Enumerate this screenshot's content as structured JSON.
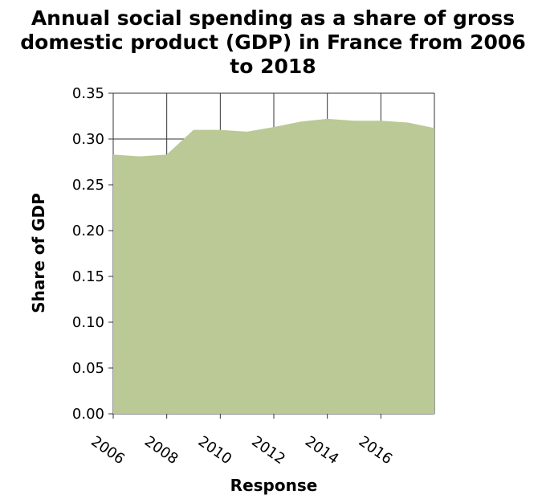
{
  "chart_data": {
    "type": "area",
    "title_lines": [
      "Annual social spending as a share of gross",
      "domestic product (GDP) in France from 2006",
      "to 2018"
    ],
    "xlabel": "Response",
    "ylabel": "Share of GDP",
    "x": [
      2006,
      2007,
      2008,
      2009,
      2010,
      2011,
      2012,
      2013,
      2014,
      2015,
      2016,
      2017,
      2018
    ],
    "values": [
      0.283,
      0.281,
      0.283,
      0.31,
      0.31,
      0.308,
      0.313,
      0.319,
      0.322,
      0.32,
      0.32,
      0.318,
      0.312
    ],
    "xlim": [
      2006,
      2018
    ],
    "ylim": [
      0,
      0.35
    ],
    "x_ticks": [
      "2006",
      "2008",
      "2010",
      "2012",
      "2014",
      "2016"
    ],
    "y_ticks": [
      "0.00",
      "0.05",
      "0.10",
      "0.15",
      "0.20",
      "0.25",
      "0.30",
      "0.35"
    ],
    "grid": true,
    "fill_color": "#bac995",
    "grid_color": "#333333"
  }
}
